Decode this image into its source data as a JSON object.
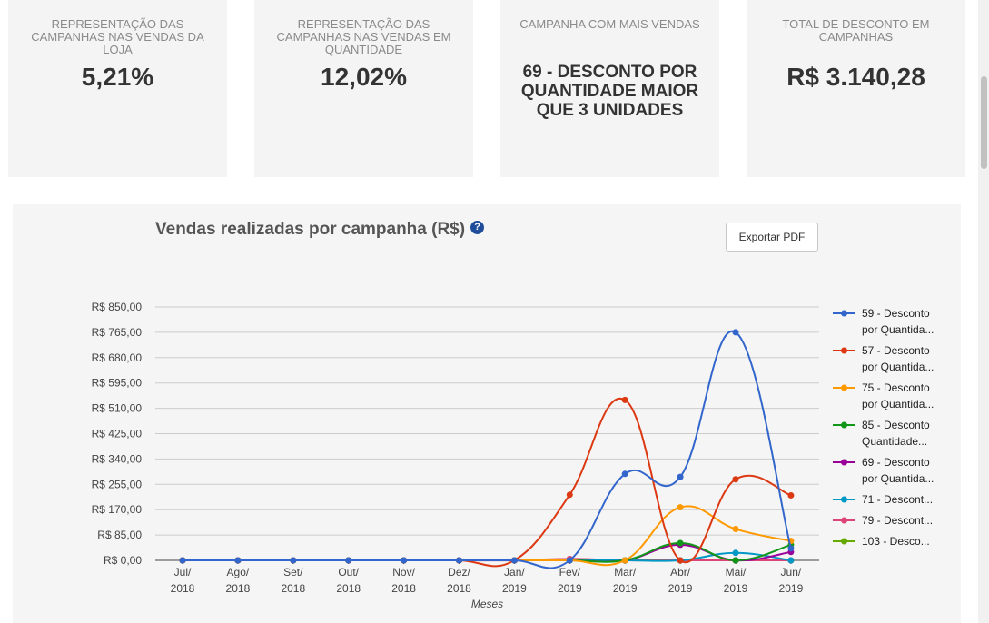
{
  "kpis": [
    {
      "label": "REPRESENTAÇÃO DAS CAMPANHAS NAS VENDAS DA LOJA",
      "value": "5,21%"
    },
    {
      "label": "REPRESENTAÇÃO DAS CAMPANHAS NAS VENDAS EM QUANTIDADE",
      "value": "12,02%"
    },
    {
      "label": "CAMPANHA COM MAIS VENDAS",
      "value": "69 - DESCONTO POR QUANTIDADE MAIOR QUE 3 UNIDADES"
    },
    {
      "label": "TOTAL DE DESCONTO EM CAMPANHAS",
      "value": "R$ 3.140,28"
    }
  ],
  "chart_panel": {
    "export_label": "Exportar PDF",
    "help_icon": "?"
  },
  "chart_data": {
    "type": "line",
    "title": "Vendas realizadas por campanha (R$)",
    "xlabel": "Meses",
    "ylabel": "",
    "ylim": [
      0,
      850
    ],
    "y_ticks": [
      "R$ 0,00",
      "R$ 85,00",
      "R$ 170,00",
      "R$ 255,00",
      "R$ 340,00",
      "R$ 425,00",
      "R$ 510,00",
      "R$ 595,00",
      "R$ 680,00",
      "R$ 765,00",
      "R$ 850,00"
    ],
    "categories": [
      [
        "Jul/",
        "2018"
      ],
      [
        "Ago/",
        "2018"
      ],
      [
        "Set/",
        "2018"
      ],
      [
        "Out/",
        "2018"
      ],
      [
        "Nov/",
        "2018"
      ],
      [
        "Dez/",
        "2018"
      ],
      [
        "Jan/",
        "2019"
      ],
      [
        "Fev/",
        "2019"
      ],
      [
        "Mar/",
        "2019"
      ],
      [
        "Abr/",
        "2019"
      ],
      [
        "Mai/",
        "2019"
      ],
      [
        "Jun/",
        "2019"
      ]
    ],
    "grid": true,
    "legend_position": "right",
    "series": [
      {
        "name": "59 - Desconto por Quantida...",
        "color": "#3366cc",
        "values": [
          0,
          0,
          0,
          0,
          0,
          0,
          0,
          0,
          290,
          280,
          765,
          40
        ]
      },
      {
        "name": "57 - Desconto por Quantida...",
        "color": "#dc3912",
        "values": [
          0,
          0,
          0,
          0,
          0,
          0,
          0,
          220,
          538,
          0,
          272,
          218
        ]
      },
      {
        "name": "75 - Desconto por Quantida...",
        "color": "#ff9900",
        "values": [
          0,
          0,
          0,
          0,
          0,
          0,
          0,
          0,
          0,
          178,
          105,
          65
        ]
      },
      {
        "name": "85 - Desconto Quantidade...",
        "color": "#109618",
        "values": [
          0,
          0,
          0,
          0,
          0,
          0,
          0,
          0,
          0,
          58,
          0,
          52
        ]
      },
      {
        "name": "69 - Desconto por Quantida...",
        "color": "#990099",
        "values": [
          0,
          0,
          0,
          0,
          0,
          0,
          0,
          0,
          0,
          52,
          0,
          28
        ]
      },
      {
        "name": "71 - Descont...",
        "color": "#0099c6",
        "values": [
          0,
          0,
          0,
          0,
          0,
          0,
          0,
          0,
          0,
          0,
          25,
          0
        ]
      },
      {
        "name": "79 - Descont...",
        "color": "#dd4477",
        "values": [
          0,
          0,
          0,
          0,
          0,
          0,
          0,
          5,
          0,
          0,
          0,
          0
        ]
      },
      {
        "name": "103 - Desco...",
        "color": "#66aa00",
        "values": [
          0,
          0,
          0,
          0,
          0,
          0,
          0,
          0,
          0,
          0,
          0,
          0
        ]
      }
    ]
  }
}
